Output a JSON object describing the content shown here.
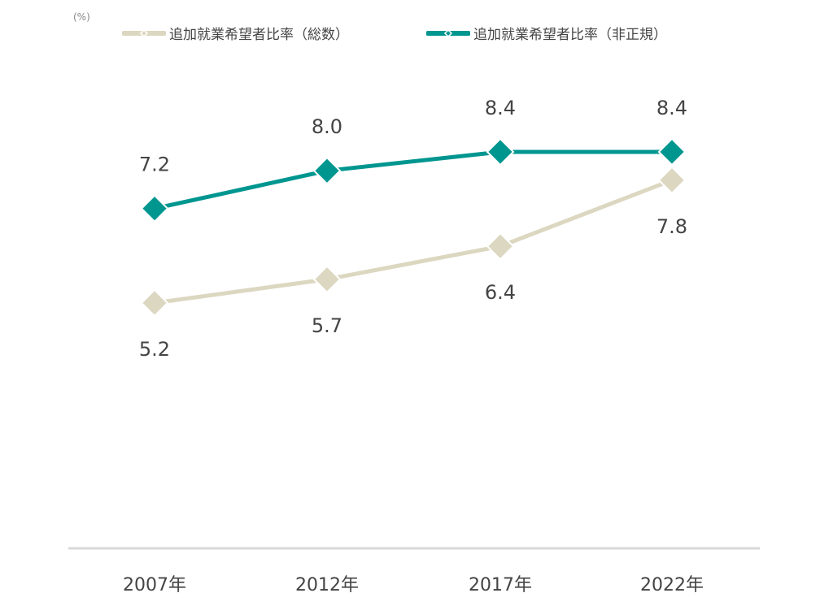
{
  "chart_data": {
    "type": "line",
    "unit_label": "(%)",
    "categories": [
      "2007年",
      "2012年",
      "2017年",
      "2022年"
    ],
    "ylim": [
      0,
      10
    ],
    "grid": false,
    "legend_position": "top",
    "series": [
      {
        "name": "追加就業希望者比率（総数）",
        "color": "#dcd7c0",
        "values": [
          5.2,
          5.7,
          6.4,
          7.8
        ],
        "label_position": "below"
      },
      {
        "name": "追加就業希望者比率（非正規）",
        "color": "#009690",
        "values": [
          7.2,
          8.0,
          8.4,
          8.4
        ],
        "label_position": "above"
      }
    ],
    "value_labels": [
      [
        "5.2",
        "5.7",
        "6.4",
        "7.8"
      ],
      [
        "7.2",
        "8.0",
        "8.4",
        "8.4"
      ]
    ]
  }
}
